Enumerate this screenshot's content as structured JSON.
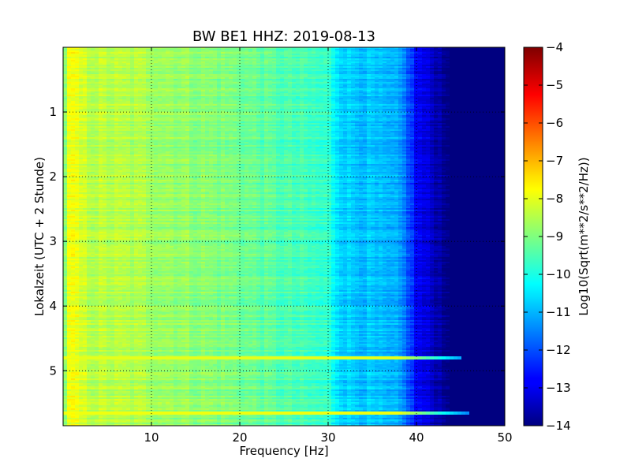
{
  "chart_data": {
    "type": "heatmap",
    "title": "BW BE1 HHZ: 2019-08-13",
    "xlabel": "Frequency [Hz]",
    "ylabel": "Lokalzeit (UTC + 2 Stunde)",
    "xlim": [
      0,
      50
    ],
    "ylim": [
      5.85,
      0
    ],
    "x_ticks": [
      10,
      20,
      30,
      40,
      50
    ],
    "y_ticks": [
      1,
      2,
      3,
      4,
      5
    ],
    "grid": true,
    "colorbar": {
      "label": "Log10(Sqrt(m**2/s**2/Hz))",
      "range": [
        -14,
        -4
      ],
      "ticks": [
        -4,
        -5,
        -6,
        -7,
        -8,
        -9,
        -10,
        -11,
        -12,
        -13,
        -14
      ],
      "colormap": "jet"
    },
    "spectral_profile": {
      "frequency_hz": [
        0,
        0.8,
        1.5,
        3,
        10,
        20,
        25,
        30,
        31,
        32,
        35,
        38,
        39,
        40,
        42,
        44,
        45,
        50
      ],
      "log_amplitude": [
        -9.2,
        -7.8,
        -8.1,
        -8.4,
        -8.6,
        -9.1,
        -9.5,
        -9.8,
        -10.4,
        -10.7,
        -10.9,
        -11.2,
        -11.8,
        -12.8,
        -13.4,
        -14,
        -14,
        -14
      ]
    },
    "bright_bands": [
      {
        "time_h": 4.8,
        "log_amplitude": -8.0,
        "max_frequency_hz": 45
      },
      {
        "time_h": 5.65,
        "log_amplitude": -7.9,
        "max_frequency_hz": 46
      }
    ]
  }
}
